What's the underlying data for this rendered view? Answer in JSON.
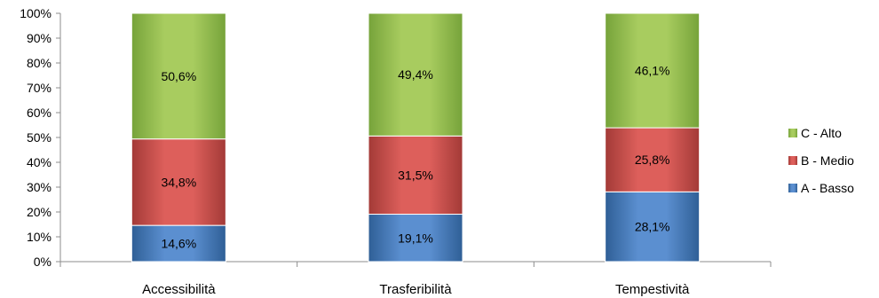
{
  "chart_data": {
    "type": "bar",
    "stacked": true,
    "categories": [
      "Accessibilità",
      "Trasferibilità",
      "Tempestività"
    ],
    "series": [
      {
        "name": "A - Basso",
        "values": [
          14.6,
          19.1,
          28.1
        ],
        "labels": [
          "14,6%",
          "19,1%",
          "28,1%"
        ],
        "color": "#4a7ebb"
      },
      {
        "name": "B - Medio",
        "values": [
          34.8,
          31.5,
          25.8
        ],
        "labels": [
          "34,8%",
          "31,5%",
          "25,8%"
        ],
        "color": "#c0504d"
      },
      {
        "name": "C - Alto",
        "values": [
          50.6,
          49.4,
          46.1
        ],
        "labels": [
          "50,6%",
          "49,4%",
          "46,1%"
        ],
        "color": "#9bbb59"
      }
    ],
    "ylim": [
      0,
      100
    ],
    "yticks": [
      0,
      10,
      20,
      30,
      40,
      50,
      60,
      70,
      80,
      90,
      100
    ],
    "ytick_labels": [
      "0%",
      "10%",
      "20%",
      "30%",
      "40%",
      "50%",
      "60%",
      "70%",
      "80%",
      "90%",
      "100%"
    ],
    "grid": false,
    "legend_position": "right",
    "legend_order": [
      "C - Alto",
      "B - Medio",
      "A - Basso"
    ]
  }
}
